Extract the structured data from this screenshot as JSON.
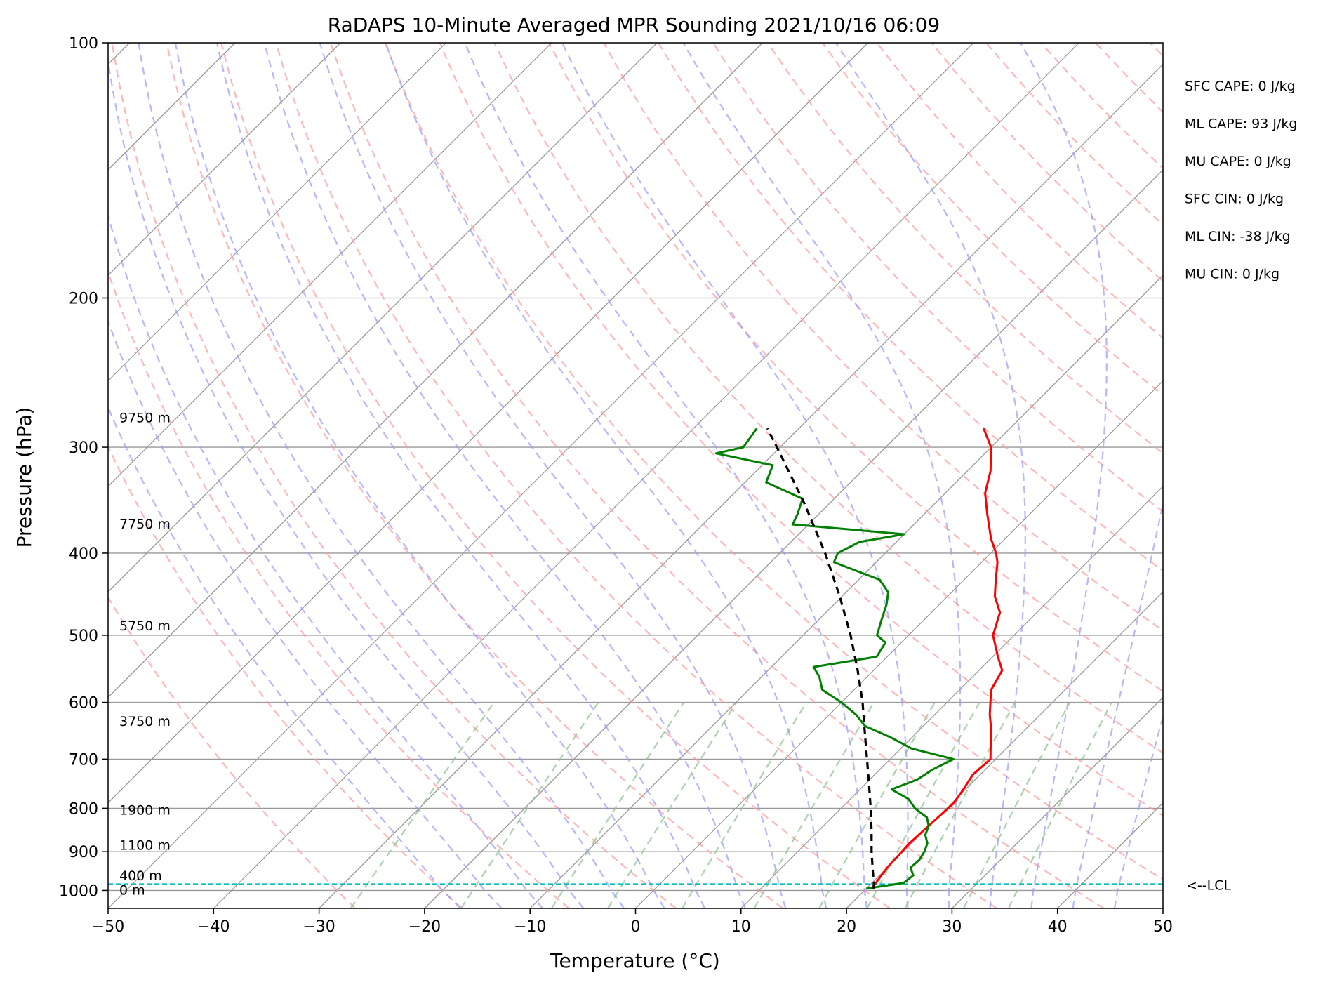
{
  "chart_data": {
    "type": "line",
    "title": "RaDAPS 10-Minute Averaged MPR Sounding 2021/10/16 06:09",
    "xlabel": "Temperature (°C)",
    "ylabel": "Pressure (hPa)",
    "xlim": [
      -50,
      50
    ],
    "ylim": [
      1050,
      100
    ],
    "y_scale": "log",
    "grid": true,
    "x_ticks": [
      -50,
      -40,
      -30,
      -20,
      -10,
      0,
      10,
      20,
      30,
      40,
      50
    ],
    "x_tick_labels": [
      "−50",
      "−40",
      "−30",
      "−20",
      "−10",
      "0",
      "10",
      "20",
      "30",
      "40",
      "50"
    ],
    "y_ticks": [
      100,
      200,
      300,
      400,
      500,
      600,
      700,
      800,
      900,
      1000
    ],
    "y_tick_labels": [
      "100",
      "200",
      "300",
      "400",
      "500",
      "600",
      "700",
      "800",
      "900",
      "1000"
    ],
    "skew": 45,
    "colors": {
      "temperature": "#ff0000",
      "dewpoint": "#008000",
      "parcel": "#000000",
      "lcl": "#00bfbf",
      "dry_adiabat": "#ff9999",
      "moist_adiabat": "#9999ff",
      "mixing_ratio": "#88c088",
      "isotherm": "#999999"
    },
    "series": [
      {
        "kind": "temperature",
        "pressure": [
          995,
          940,
          880,
          830,
          790,
          760,
          730,
          700,
          680,
          650,
          620,
          580,
          550,
          530,
          500,
          470,
          450,
          430,
          410,
          400,
          385,
          360,
          340,
          320,
          300,
          285
        ],
        "temp": [
          20.5,
          20.0,
          19.8,
          20.0,
          20.2,
          19.8,
          19.3,
          19.5,
          18.5,
          17.0,
          15.2,
          13.0,
          12.2,
          10.5,
          8.0,
          6.5,
          4.5,
          3.0,
          1.5,
          0.5,
          -1.3,
          -4.0,
          -6.2,
          -7.8,
          -10.0,
          -12.5
        ]
      },
      {
        "kind": "dewpoint",
        "pressure": [
          995,
          980,
          960,
          940,
          920,
          900,
          880,
          860,
          840,
          820,
          800,
          780,
          760,
          740,
          720,
          700,
          680,
          660,
          640,
          620,
          600,
          580,
          560,
          545,
          530,
          510,
          500,
          480,
          460,
          445,
          430,
          410,
          400,
          388,
          380,
          370,
          360,
          345,
          330,
          315,
          305,
          300,
          285
        ],
        "temp": [
          20.0,
          23.0,
          23.2,
          22.2,
          22.3,
          22.0,
          21.5,
          20.5,
          20.0,
          19.0,
          17.0,
          15.5,
          13.0,
          14.5,
          15.0,
          16.0,
          11.0,
          8.0,
          4.5,
          2.5,
          0.0,
          -3.0,
          -4.5,
          -6.0,
          -1.0,
          -1.5,
          -3.0,
          -4.0,
          -5.0,
          -6.0,
          -8.0,
          -14.0,
          -14.5,
          -13.5,
          -10.0,
          -21.5,
          -22.0,
          -23.0,
          -28.0,
          -29.0,
          -35.5,
          -33.5,
          -34.0
        ]
      },
      {
        "kind": "parcel",
        "pressure": [
          995,
          983,
          950,
          900,
          850,
          800,
          750,
          700,
          650,
          600,
          550,
          500,
          450,
          400,
          350,
          300,
          285
        ],
        "temp": [
          20.7,
          20.3,
          19.0,
          17.0,
          15.0,
          12.8,
          10.4,
          7.8,
          5.0,
          2.0,
          -1.5,
          -5.5,
          -10.2,
          -15.7,
          -22.3,
          -30.3,
          -33.0
        ]
      }
    ],
    "lcl_pressure": 983,
    "lcl_label": "<--LCL",
    "height_labels": [
      {
        "text": "0 m",
        "pressure": 1000
      },
      {
        "text": "400 m",
        "pressure": 962
      },
      {
        "text": "1100 m",
        "pressure": 885
      },
      {
        "text": "1900 m",
        "pressure": 805
      },
      {
        "text": "3750 m",
        "pressure": 632
      },
      {
        "text": "5750 m",
        "pressure": 488
      },
      {
        "text": "7750 m",
        "pressure": 370
      },
      {
        "text": "9750 m",
        "pressure": 277
      }
    ],
    "annotations": [
      "SFC CAPE: 0 J/kg",
      "ML CAPE: 93 J/kg",
      "MU CAPE: 0 J/kg",
      "SFC CIN: 0 J/kg",
      "ML CIN: -38 J/kg",
      "MU CIN: 0 J/kg"
    ]
  }
}
